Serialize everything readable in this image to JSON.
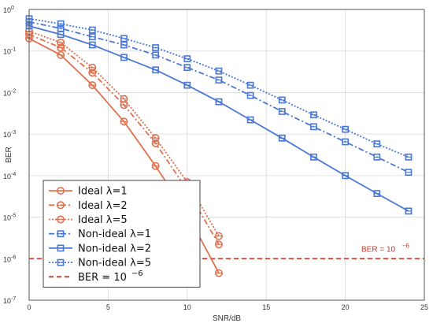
{
  "chart_data": {
    "type": "line",
    "xlabel": "SNR/dB",
    "ylabel": "BER",
    "xlim": [
      0,
      25
    ],
    "ylim": [
      1e-07,
      1
    ],
    "yscale": "log",
    "xticks": [
      "0",
      "5",
      "10",
      "15",
      "20",
      "25"
    ],
    "yticks": [
      {
        "base": "10",
        "exp": "0"
      },
      {
        "base": "10",
        "exp": "-1"
      },
      {
        "base": "10",
        "exp": "-2"
      },
      {
        "base": "10",
        "exp": "-3"
      },
      {
        "base": "10",
        "exp": "-4"
      },
      {
        "base": "10",
        "exp": "-5"
      },
      {
        "base": "10",
        "exp": "-6"
      },
      {
        "base": "10",
        "exp": "-7"
      }
    ],
    "grid": true,
    "legend": "bottom-left",
    "colors": {
      "ideal": "#e0714f",
      "nonideal": "#4a78d6",
      "threshold": "#c0392b"
    },
    "series": [
      {
        "name": "Ideal λ=1",
        "group": "ideal",
        "dash": "solid",
        "marker": "circle",
        "x": [
          0,
          2,
          4,
          6,
          8,
          10,
          12
        ],
        "y": [
          0.2,
          0.08,
          0.015,
          0.002,
          0.00017,
          1.2e-05,
          4.5e-07
        ]
      },
      {
        "name": "Ideal λ=2",
        "group": "ideal",
        "dash": "dashdot",
        "marker": "circle",
        "x": [
          0,
          2,
          4,
          6,
          8,
          10,
          12
        ],
        "y": [
          0.25,
          0.12,
          0.03,
          0.005,
          0.0006,
          4.5e-05,
          2.2e-06
        ]
      },
      {
        "name": "Ideal λ=5",
        "group": "ideal",
        "dash": "dotted",
        "marker": "circle",
        "x": [
          0,
          2,
          4,
          6,
          8,
          10,
          12
        ],
        "y": [
          0.3,
          0.16,
          0.04,
          0.007,
          0.0008,
          7e-05,
          3.5e-06
        ]
      },
      {
        "name": "Non-ideal λ=1",
        "group": "nonideal",
        "dash": "dashdot",
        "marker": "square",
        "x": [
          0,
          2,
          4,
          6,
          8,
          10,
          12,
          14,
          16,
          18,
          20,
          22,
          24
        ],
        "y": [
          0.5,
          0.35,
          0.22,
          0.14,
          0.08,
          0.04,
          0.02,
          0.0085,
          0.0035,
          0.0015,
          0.00065,
          0.00028,
          0.00012
        ]
      },
      {
        "name": "Non-ideal λ=2",
        "group": "nonideal",
        "dash": "solid",
        "marker": "square",
        "x": [
          0,
          2,
          4,
          6,
          8,
          10,
          12,
          14,
          16,
          18,
          20,
          22,
          24
        ],
        "y": [
          0.4,
          0.25,
          0.14,
          0.07,
          0.035,
          0.015,
          0.006,
          0.0022,
          0.0008,
          0.00028,
          0.0001,
          3.7e-05,
          1.4e-05
        ]
      },
      {
        "name": "Non-ideal λ=5",
        "group": "nonideal",
        "dash": "dotted",
        "marker": "square",
        "x": [
          0,
          2,
          4,
          6,
          8,
          10,
          12,
          14,
          16,
          18,
          20,
          22,
          24
        ],
        "y": [
          0.6,
          0.45,
          0.32,
          0.2,
          0.12,
          0.065,
          0.033,
          0.015,
          0.0066,
          0.0029,
          0.0013,
          0.00058,
          0.00028
        ]
      }
    ],
    "threshold": {
      "name": "BER = 10",
      "exp": "−6",
      "value": 1e-06
    },
    "annotation": {
      "text": "BER = 10",
      "exp": "−6"
    }
  }
}
